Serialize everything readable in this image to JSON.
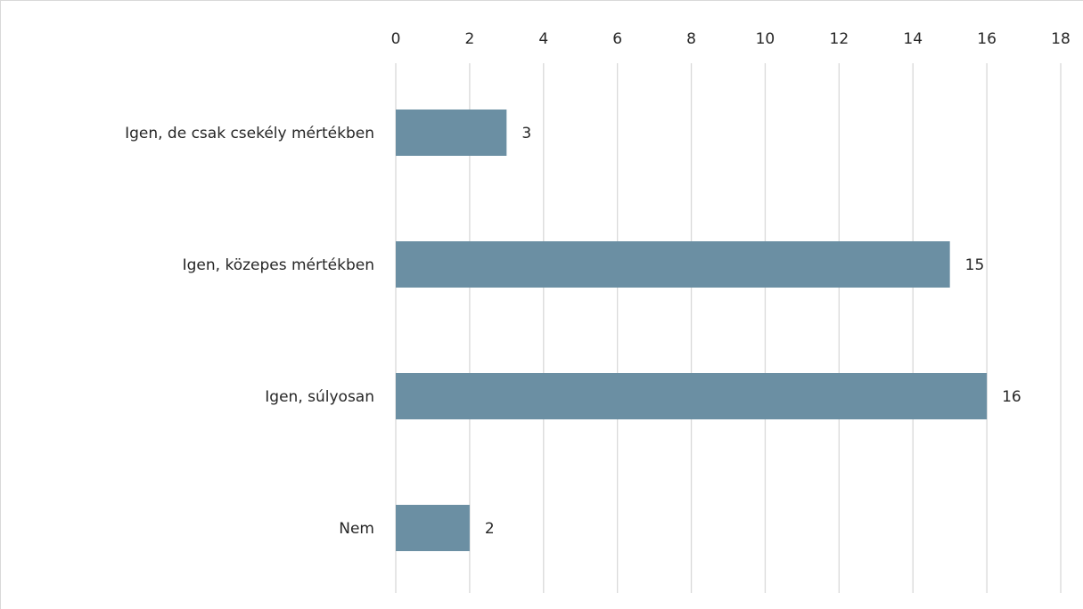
{
  "chart_data": {
    "type": "bar",
    "orientation": "horizontal",
    "categories": [
      "Igen, de csak csekély mértékben",
      "Igen, közepes mértékben",
      "Igen, súlyosan",
      "Nem"
    ],
    "values": [
      3,
      15,
      16,
      2
    ],
    "title": "",
    "xlabel": "",
    "ylabel": "",
    "xlim": [
      0,
      18
    ],
    "xticks": [
      0,
      2,
      4,
      6,
      8,
      10,
      12,
      14,
      16,
      18
    ],
    "x_axis_position": "top",
    "grid": true,
    "data_labels": true,
    "bar_color": "#6b8fa3",
    "gridline_color": "#d9d9d9"
  }
}
